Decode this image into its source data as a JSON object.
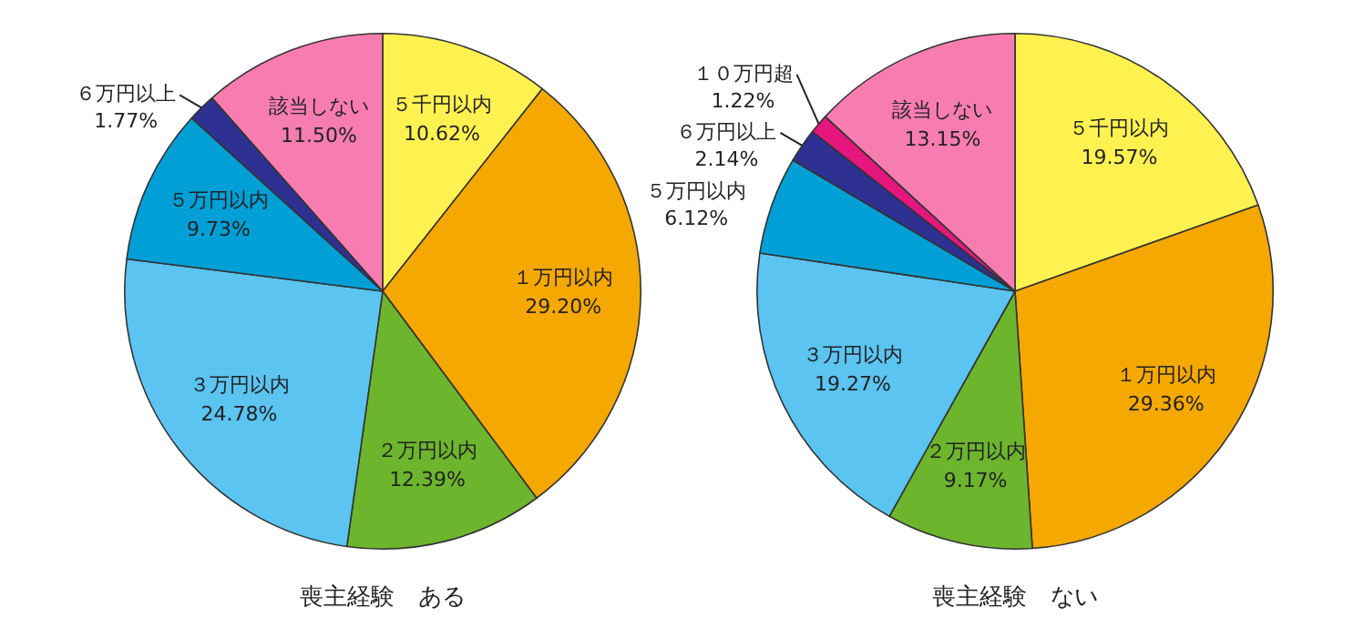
{
  "chart_data": [
    {
      "type": "pie",
      "title": "喪主経験　ある",
      "categories": [
        "５千円以内",
        "１万円以内",
        "２万円以内",
        "３万円以内",
        "５万円以内",
        "６万円以上",
        "該当しない"
      ],
      "values": [
        10.62,
        29.2,
        12.39,
        24.78,
        9.73,
        1.77,
        11.5
      ],
      "colors": [
        "#fff250",
        "#f5a800",
        "#6cb52d",
        "#5bc4f1",
        "#00a0d6",
        "#2e3192",
        "#f77db0"
      ],
      "value_labels": [
        "10.62%",
        "29.20%",
        "12.39%",
        "24.78%",
        "9.73%",
        "1.77%",
        "11.50%"
      ]
    },
    {
      "type": "pie",
      "title": "喪主経験　ない",
      "categories": [
        "５千円以内",
        "１万円以内",
        "２万円以内",
        "３万円以内",
        "５万円以内",
        "６万円以上",
        "１０万円超",
        "該当しない"
      ],
      "values": [
        19.57,
        29.36,
        9.17,
        19.27,
        6.12,
        2.14,
        1.22,
        13.15
      ],
      "colors": [
        "#fff250",
        "#f5a800",
        "#6cb52d",
        "#5bc4f1",
        "#00a0d6",
        "#2e3192",
        "#e5177e",
        "#f77db0"
      ],
      "value_labels": [
        "19.57%",
        "29.36%",
        "9.17%",
        "19.27%",
        "6.12%",
        "2.14%",
        "1.22%",
        "13.15%"
      ]
    }
  ]
}
